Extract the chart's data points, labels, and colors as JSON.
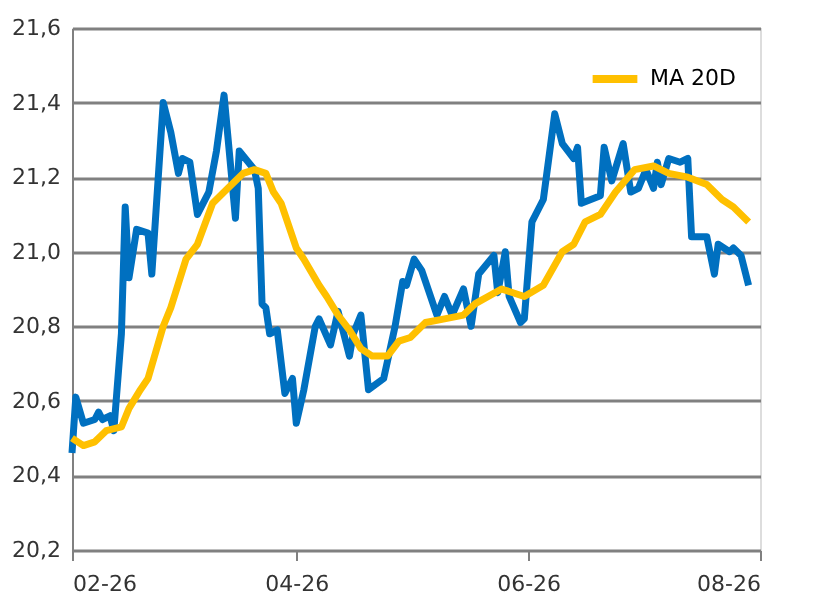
{
  "chart_data": {
    "type": "line",
    "xlim": [
      "2026-02-01",
      "2026-08-01"
    ],
    "xticks": [
      {
        "value": "2026-02-01",
        "label": "02-26"
      },
      {
        "value": "2026-04-01",
        "label": "04-26"
      },
      {
        "value": "2026-06-01",
        "label": "06-26"
      },
      {
        "value": "2026-08-01",
        "label": "08-26"
      }
    ],
    "ylim": [
      20.2,
      21.6
    ],
    "yticks": [
      {
        "value": 20.2,
        "label": "20,2"
      },
      {
        "value": 20.4,
        "label": "20,4"
      },
      {
        "value": 20.6,
        "label": "20,6"
      },
      {
        "value": 20.8,
        "label": "20,8"
      },
      {
        "value": 21.0,
        "label": "21,0"
      },
      {
        "value": 21.2,
        "label": "21,2"
      },
      {
        "value": 21.4,
        "label": "21,4"
      },
      {
        "value": 21.6,
        "label": "21,6"
      }
    ],
    "grid": "y",
    "legend": "top right",
    "marker": "none",
    "line_style": "solid",
    "series": [
      {
        "color": "#0070c0",
        "x": [
          "2026-02-01",
          "2026-02-02",
          "2026-02-04",
          "2026-02-07",
          "2026-02-08",
          "2026-02-09",
          "2026-02-11",
          "2026-02-12",
          "2026-02-14",
          "2026-02-15",
          "2026-02-16",
          "2026-02-18",
          "2026-02-21",
          "2026-02-22",
          "2026-02-25",
          "2026-02-27",
          "2026-03-01",
          "2026-03-02",
          "2026-03-04",
          "2026-03-06",
          "2026-03-09",
          "2026-03-11",
          "2026-03-13",
          "2026-03-16",
          "2026-03-17",
          "2026-03-21",
          "2026-03-22",
          "2026-03-23",
          "2026-03-24",
          "2026-03-25",
          "2026-03-27",
          "2026-03-29",
          "2026-03-31",
          "2026-04-01",
          "2026-04-03",
          "2026-04-06",
          "2026-04-07",
          "2026-04-10",
          "2026-04-12",
          "2026-04-15",
          "2026-04-16",
          "2026-04-18",
          "2026-04-20",
          "2026-04-24",
          "2026-04-27",
          "2026-04-29",
          "2026-04-30",
          "2026-05-02",
          "2026-05-04",
          "2026-05-08",
          "2026-05-10",
          "2026-05-12",
          "2026-05-15",
          "2026-05-17",
          "2026-05-19",
          "2026-05-23",
          "2026-05-24",
          "2026-05-26",
          "2026-05-27",
          "2026-05-30",
          "2026-05-31",
          "2026-06-02",
          "2026-06-05",
          "2026-06-08",
          "2026-06-10",
          "2026-06-13",
          "2026-06-14",
          "2026-06-15",
          "2026-06-20",
          "2026-06-21",
          "2026-06-23",
          "2026-06-26",
          "2026-06-28",
          "2026-06-30",
          "2026-07-02",
          "2026-07-04",
          "2026-07-05",
          "2026-07-06",
          "2026-07-08",
          "2026-07-11",
          "2026-07-13",
          "2026-07-14",
          "2026-07-18",
          "2026-07-20",
          "2026-07-21",
          "2026-07-24",
          "2026-07-25",
          "2026-07-27",
          "2026-07-29"
        ],
        "values": [
          20.46,
          20.61,
          20.54,
          20.55,
          20.57,
          20.55,
          20.56,
          20.52,
          20.78,
          21.12,
          20.93,
          21.06,
          21.05,
          20.94,
          21.4,
          21.32,
          21.21,
          21.25,
          21.24,
          21.1,
          21.16,
          21.27,
          21.42,
          21.09,
          21.27,
          21.22,
          21.17,
          20.86,
          20.85,
          20.78,
          20.79,
          20.62,
          20.66,
          20.54,
          20.63,
          20.8,
          20.82,
          20.75,
          20.84,
          20.72,
          20.78,
          20.83,
          20.63,
          20.66,
          20.8,
          20.92,
          20.91,
          20.98,
          20.95,
          20.83,
          20.88,
          20.83,
          20.9,
          20.8,
          20.94,
          20.99,
          20.89,
          21.0,
          20.88,
          20.81,
          20.82,
          21.08,
          21.14,
          21.37,
          21.29,
          21.25,
          21.28,
          21.13,
          21.15,
          21.28,
          21.19,
          21.29,
          21.16,
          21.17,
          21.22,
          21.17,
          21.24,
          21.18,
          21.25,
          21.24,
          21.25,
          21.04,
          21.04,
          20.94,
          21.02,
          21.0,
          21.01,
          20.99,
          20.91
        ]
      },
      {
        "name": "MA 20D",
        "color": "#ffc000",
        "x": [
          "2026-02-01",
          "2026-02-04",
          "2026-02-07",
          "2026-02-10",
          "2026-02-14",
          "2026-02-16",
          "2026-02-19",
          "2026-02-21",
          "2026-02-25",
          "2026-02-27",
          "2026-03-03",
          "2026-03-06",
          "2026-03-10",
          "2026-03-14",
          "2026-03-18",
          "2026-03-21",
          "2026-03-24",
          "2026-03-26",
          "2026-03-28",
          "2026-04-01",
          "2026-04-03",
          "2026-04-07",
          "2026-04-09",
          "2026-04-12",
          "2026-04-15",
          "2026-04-18",
          "2026-04-21",
          "2026-04-25",
          "2026-04-28",
          "2026-05-01",
          "2026-05-05",
          "2026-05-10",
          "2026-05-15",
          "2026-05-18",
          "2026-05-25",
          "2026-05-31",
          "2026-06-05",
          "2026-06-10",
          "2026-06-13",
          "2026-06-16",
          "2026-06-20",
          "2026-06-24",
          "2026-06-29",
          "2026-07-04",
          "2026-07-08",
          "2026-07-13",
          "2026-07-18",
          "2026-07-22",
          "2026-07-25",
          "2026-07-29"
        ],
        "values": [
          20.5,
          20.48,
          20.49,
          20.52,
          20.53,
          20.58,
          20.63,
          20.66,
          20.8,
          20.85,
          20.98,
          21.02,
          21.13,
          21.17,
          21.21,
          21.22,
          21.21,
          21.16,
          21.13,
          21.01,
          20.98,
          20.91,
          20.88,
          20.83,
          20.79,
          20.74,
          20.72,
          20.72,
          20.76,
          20.77,
          20.81,
          20.82,
          20.83,
          20.86,
          20.9,
          20.88,
          20.91,
          21.0,
          21.02,
          21.08,
          21.1,
          21.16,
          21.22,
          21.23,
          21.21,
          21.2,
          21.18,
          21.14,
          21.12,
          21.08
        ]
      }
    ]
  }
}
